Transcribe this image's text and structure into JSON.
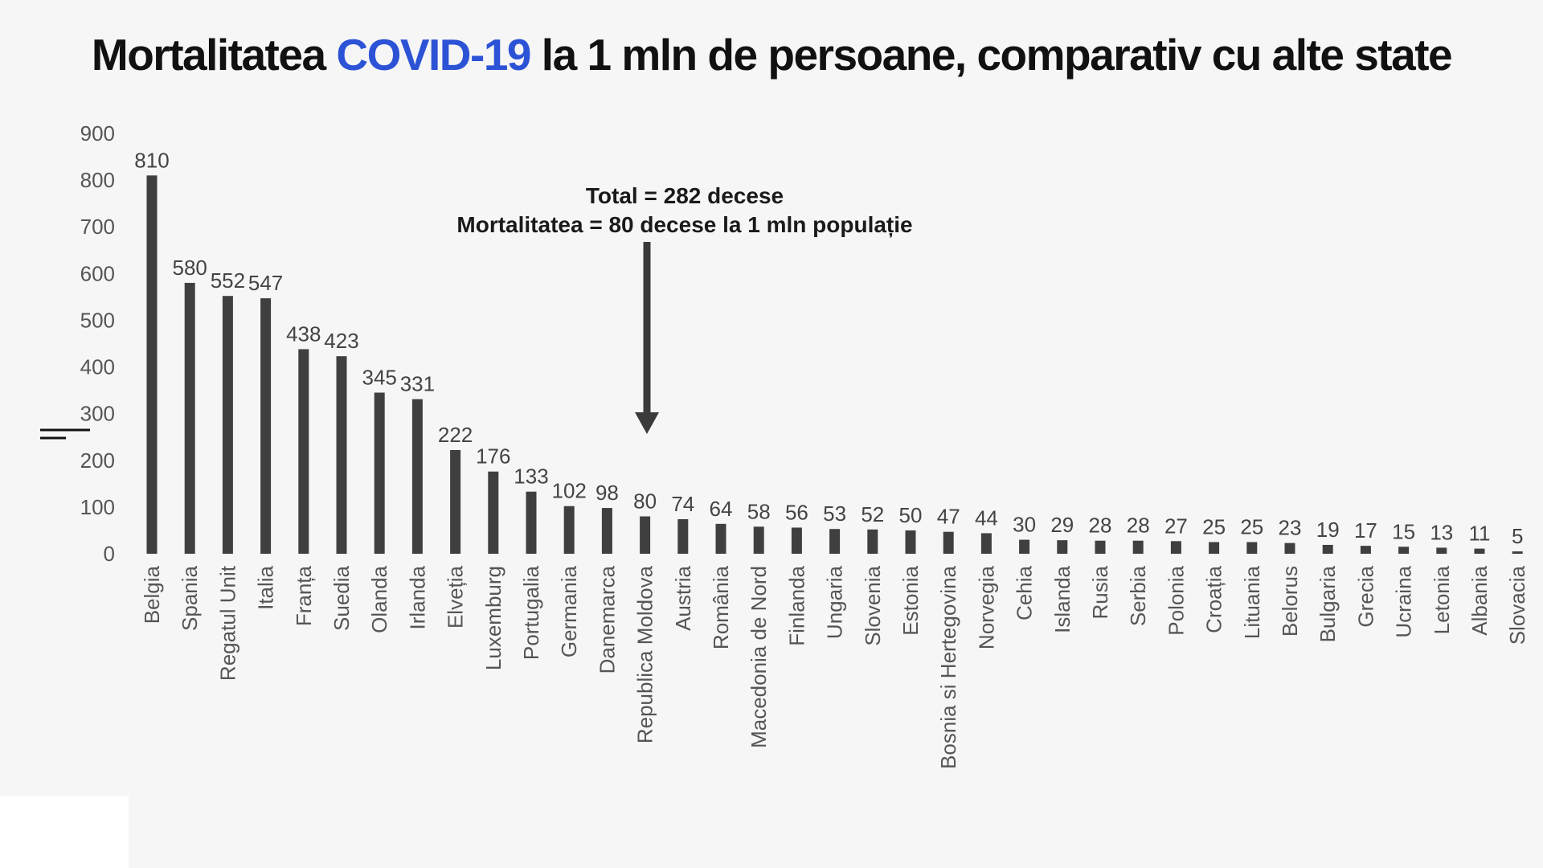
{
  "title": {
    "part1": "Mortalitatea ",
    "highlight": "COVID-19",
    "part2": " la 1 mln de persoane, comparativ cu alte state"
  },
  "colors": {
    "bar": "#3f3f3f",
    "accent": "#2c53d6",
    "background": "#f6f6f6"
  },
  "chart_data": {
    "type": "bar",
    "title": "Mortalitatea COVID-19 la 1 mln de persoane, comparativ cu alte state",
    "xlabel": "",
    "ylabel": "",
    "ylim": [
      0,
      900
    ],
    "yticks": [
      0,
      100,
      200,
      300,
      400,
      500,
      600,
      700,
      800,
      900
    ],
    "grid": false,
    "legend": "none",
    "categories": [
      "Belgia",
      "Spania",
      "Regatul Unit",
      "Italia",
      "Franța",
      "Suedia",
      "Olanda",
      "Irlanda",
      "Elveția",
      "Luxemburg",
      "Portugalia",
      "Germania",
      "Danemarca",
      "Republica Moldova",
      "Austria",
      "România",
      "Macedonia de Nord",
      "Finlanda",
      "Ungaria",
      "Slovenia",
      "Estonia",
      "Bosnia si Hertegovina",
      "Norvegia",
      "Cehia",
      "Islanda",
      "Rusia",
      "Serbia",
      "Polonia",
      "Croația",
      "Lituania",
      "Belorus",
      "Bulgaria",
      "Grecia",
      "Ucraina",
      "Letonia",
      "Albania",
      "Slovacia"
    ],
    "values": [
      810,
      580,
      552,
      547,
      438,
      423,
      345,
      331,
      222,
      176,
      133,
      102,
      98,
      80,
      74,
      64,
      58,
      56,
      53,
      52,
      50,
      47,
      44,
      30,
      29,
      28,
      28,
      27,
      25,
      25,
      23,
      19,
      17,
      15,
      13,
      11,
      5
    ],
    "annotation": {
      "line1": "Total = 282 decese",
      "line2": "Mortalitatea = 80 decese la 1 mln populație",
      "target_category": "Republica Moldova"
    }
  }
}
